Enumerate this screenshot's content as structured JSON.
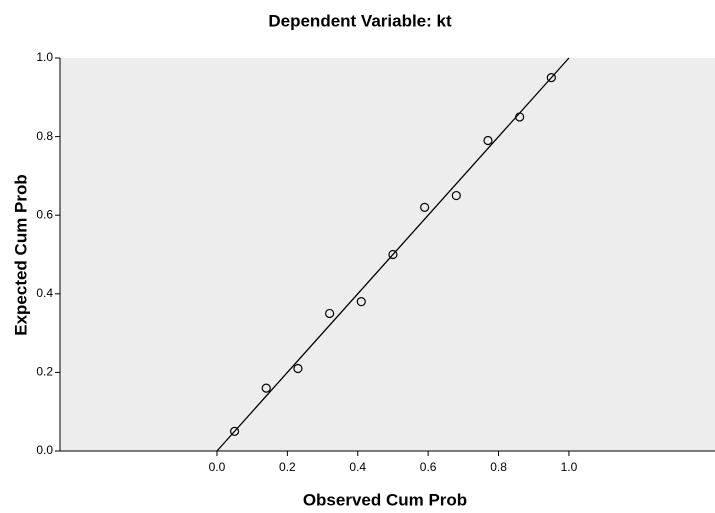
{
  "chart_data": {
    "type": "scatter",
    "title": "Dependent Variable: kt",
    "x_label": "Observed Cum Prob",
    "y_label": "Expected Cum Prob",
    "x": [
      0.05,
      0.14,
      0.23,
      0.32,
      0.41,
      0.5,
      0.59,
      0.68,
      0.77,
      0.86,
      0.95
    ],
    "values": [
      0.05,
      0.16,
      0.21,
      0.35,
      0.38,
      0.5,
      0.62,
      0.65,
      0.79,
      0.85,
      0.95
    ],
    "xlim": [
      -0.446,
      1.415
    ],
    "ylim": [
      0,
      1
    ],
    "xticks": [
      {
        "value": 0,
        "label": "0.0"
      },
      {
        "value": 0.2,
        "label": "0.2"
      },
      {
        "value": 0.4,
        "label": "0.4"
      },
      {
        "value": 0.6,
        "label": "0.6"
      },
      {
        "value": 0.8,
        "label": "0.8"
      },
      {
        "value": 1,
        "label": "1.0"
      }
    ],
    "yticks": [
      {
        "value": 0,
        "label": "0.0"
      },
      {
        "value": 0.2,
        "label": "0.2"
      },
      {
        "value": 0.4,
        "label": "0.4"
      },
      {
        "value": 0.6,
        "label": "0.6"
      },
      {
        "value": 0.8,
        "label": "0.8"
      },
      {
        "value": 1,
        "label": "1.0"
      }
    ],
    "grid": false,
    "color": "#000000"
  }
}
